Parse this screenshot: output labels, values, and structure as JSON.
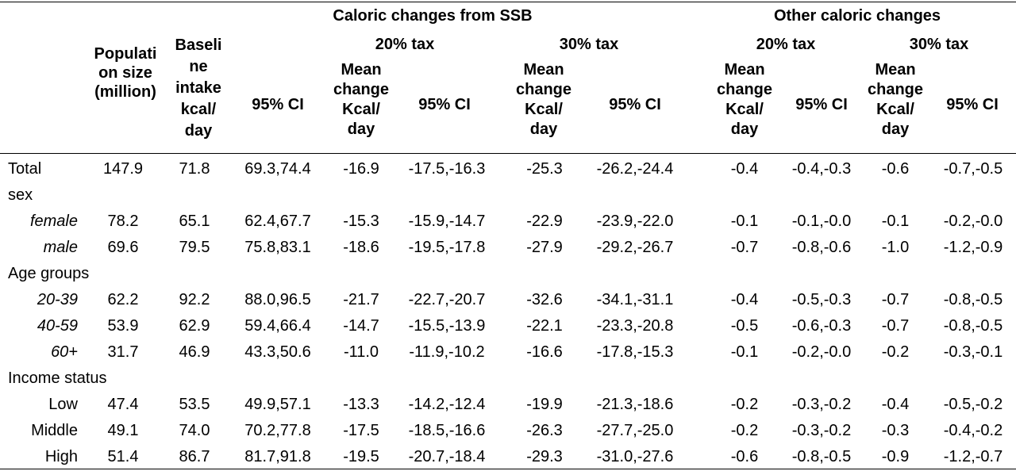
{
  "header": {
    "group_ssb": "Caloric changes from SSB",
    "group_other": "Other caloric changes",
    "tax20": "20% tax",
    "tax30": "30% tax",
    "population": [
      "Populati",
      "on size",
      "(million)"
    ],
    "baseline": [
      "Baseli",
      "ne",
      "intake",
      "kcal/",
      "day"
    ],
    "ci": "95% CI",
    "mean_change": [
      "Mean",
      "change",
      "Kcal/",
      "day"
    ]
  },
  "rows": [
    {
      "label": "Total",
      "style": "label",
      "pop": "147.9",
      "base": "71.8",
      "base_ci": "69.3,74.4",
      "s20": "-16.9",
      "s20_ci": "-17.5,-16.3",
      "s30": "-25.3",
      "s30_ci": "-26.2,-24.4",
      "o20": "-0.4",
      "o20_ci": "-0.4,-0.3",
      "o30": "-0.6",
      "o30_ci": "-0.7,-0.5"
    },
    {
      "label": "sex",
      "style": "label"
    },
    {
      "label": "female",
      "style": "sub",
      "pop": "78.2",
      "base": "65.1",
      "base_ci": "62.4,67.7",
      "s20": "-15.3",
      "s20_ci": "-15.9,-14.7",
      "s30": "-22.9",
      "s30_ci": "-23.9,-22.0",
      "o20": "-0.1",
      "o20_ci": "-0.1,-0.0",
      "o30": "-0.1",
      "o30_ci": "-0.2,-0.0"
    },
    {
      "label": "male",
      "style": "sub",
      "pop": "69.6",
      "base": "79.5",
      "base_ci": "75.8,83.1",
      "s20": "-18.6",
      "s20_ci": "-19.5,-17.8",
      "s30": "-27.9",
      "s30_ci": "-29.2,-26.7",
      "o20": "-0.7",
      "o20_ci": "-0.8,-0.6",
      "o30": "-1.0",
      "o30_ci": "-1.2,-0.9"
    },
    {
      "label": "Age groups",
      "style": "label"
    },
    {
      "label": "20-39",
      "style": "sub",
      "pop": "62.2",
      "base": "92.2",
      "base_ci": "88.0,96.5",
      "s20": "-21.7",
      "s20_ci": "-22.7,-20.7",
      "s30": "-32.6",
      "s30_ci": "-34.1,-31.1",
      "o20": "-0.4",
      "o20_ci": "-0.5,-0.3",
      "o30": "-0.7",
      "o30_ci": "-0.8,-0.5"
    },
    {
      "label": "40-59",
      "style": "sub",
      "pop": "53.9",
      "base": "62.9",
      "base_ci": "59.4,66.4",
      "s20": "-14.7",
      "s20_ci": "-15.5,-13.9",
      "s30": "-22.1",
      "s30_ci": "-23.3,-20.8",
      "o20": "-0.5",
      "o20_ci": "-0.6,-0.3",
      "o30": "-0.7",
      "o30_ci": "-0.8,-0.5"
    },
    {
      "label": "60+",
      "style": "sub",
      "pop": "31.7",
      "base": "46.9",
      "base_ci": "43.3,50.6",
      "s20": "-11.0",
      "s20_ci": "-11.9,-10.2",
      "s30": "-16.6",
      "s30_ci": "-17.8,-15.3",
      "o20": "-0.1",
      "o20_ci": "-0.2,-0.0",
      "o30": "-0.2",
      "o30_ci": "-0.3,-0.1"
    },
    {
      "label": "Income status",
      "style": "label"
    },
    {
      "label": "Low",
      "style": "sub-r",
      "pop": "47.4",
      "base": "53.5",
      "base_ci": "49.9,57.1",
      "s20": "-13.3",
      "s20_ci": "-14.2,-12.4",
      "s30": "-19.9",
      "s30_ci": "-21.3,-18.6",
      "o20": "-0.2",
      "o20_ci": "-0.3,-0.2",
      "o30": "-0.4",
      "o30_ci": "-0.5,-0.2"
    },
    {
      "label": "Middle",
      "style": "sub-r",
      "pop": "49.1",
      "base": "74.0",
      "base_ci": "70.2,77.8",
      "s20": "-17.5",
      "s20_ci": "-18.5,-16.6",
      "s30": "-26.3",
      "s30_ci": "-27.7,-25.0",
      "o20": "-0.2",
      "o20_ci": "-0.3,-0.2",
      "o30": "-0.3",
      "o30_ci": "-0.4,-0.2"
    },
    {
      "label": "High",
      "style": "sub-r",
      "pop": "51.4",
      "base": "86.7",
      "base_ci": "81.7,91.8",
      "s20": "-19.5",
      "s20_ci": "-20.7,-18.4",
      "s30": "-29.3",
      "s30_ci": "-31.0,-27.6",
      "o20": "-0.6",
      "o20_ci": "-0.8,-0.5",
      "o30": "-0.9",
      "o30_ci": "-1.2,-0.7"
    }
  ]
}
